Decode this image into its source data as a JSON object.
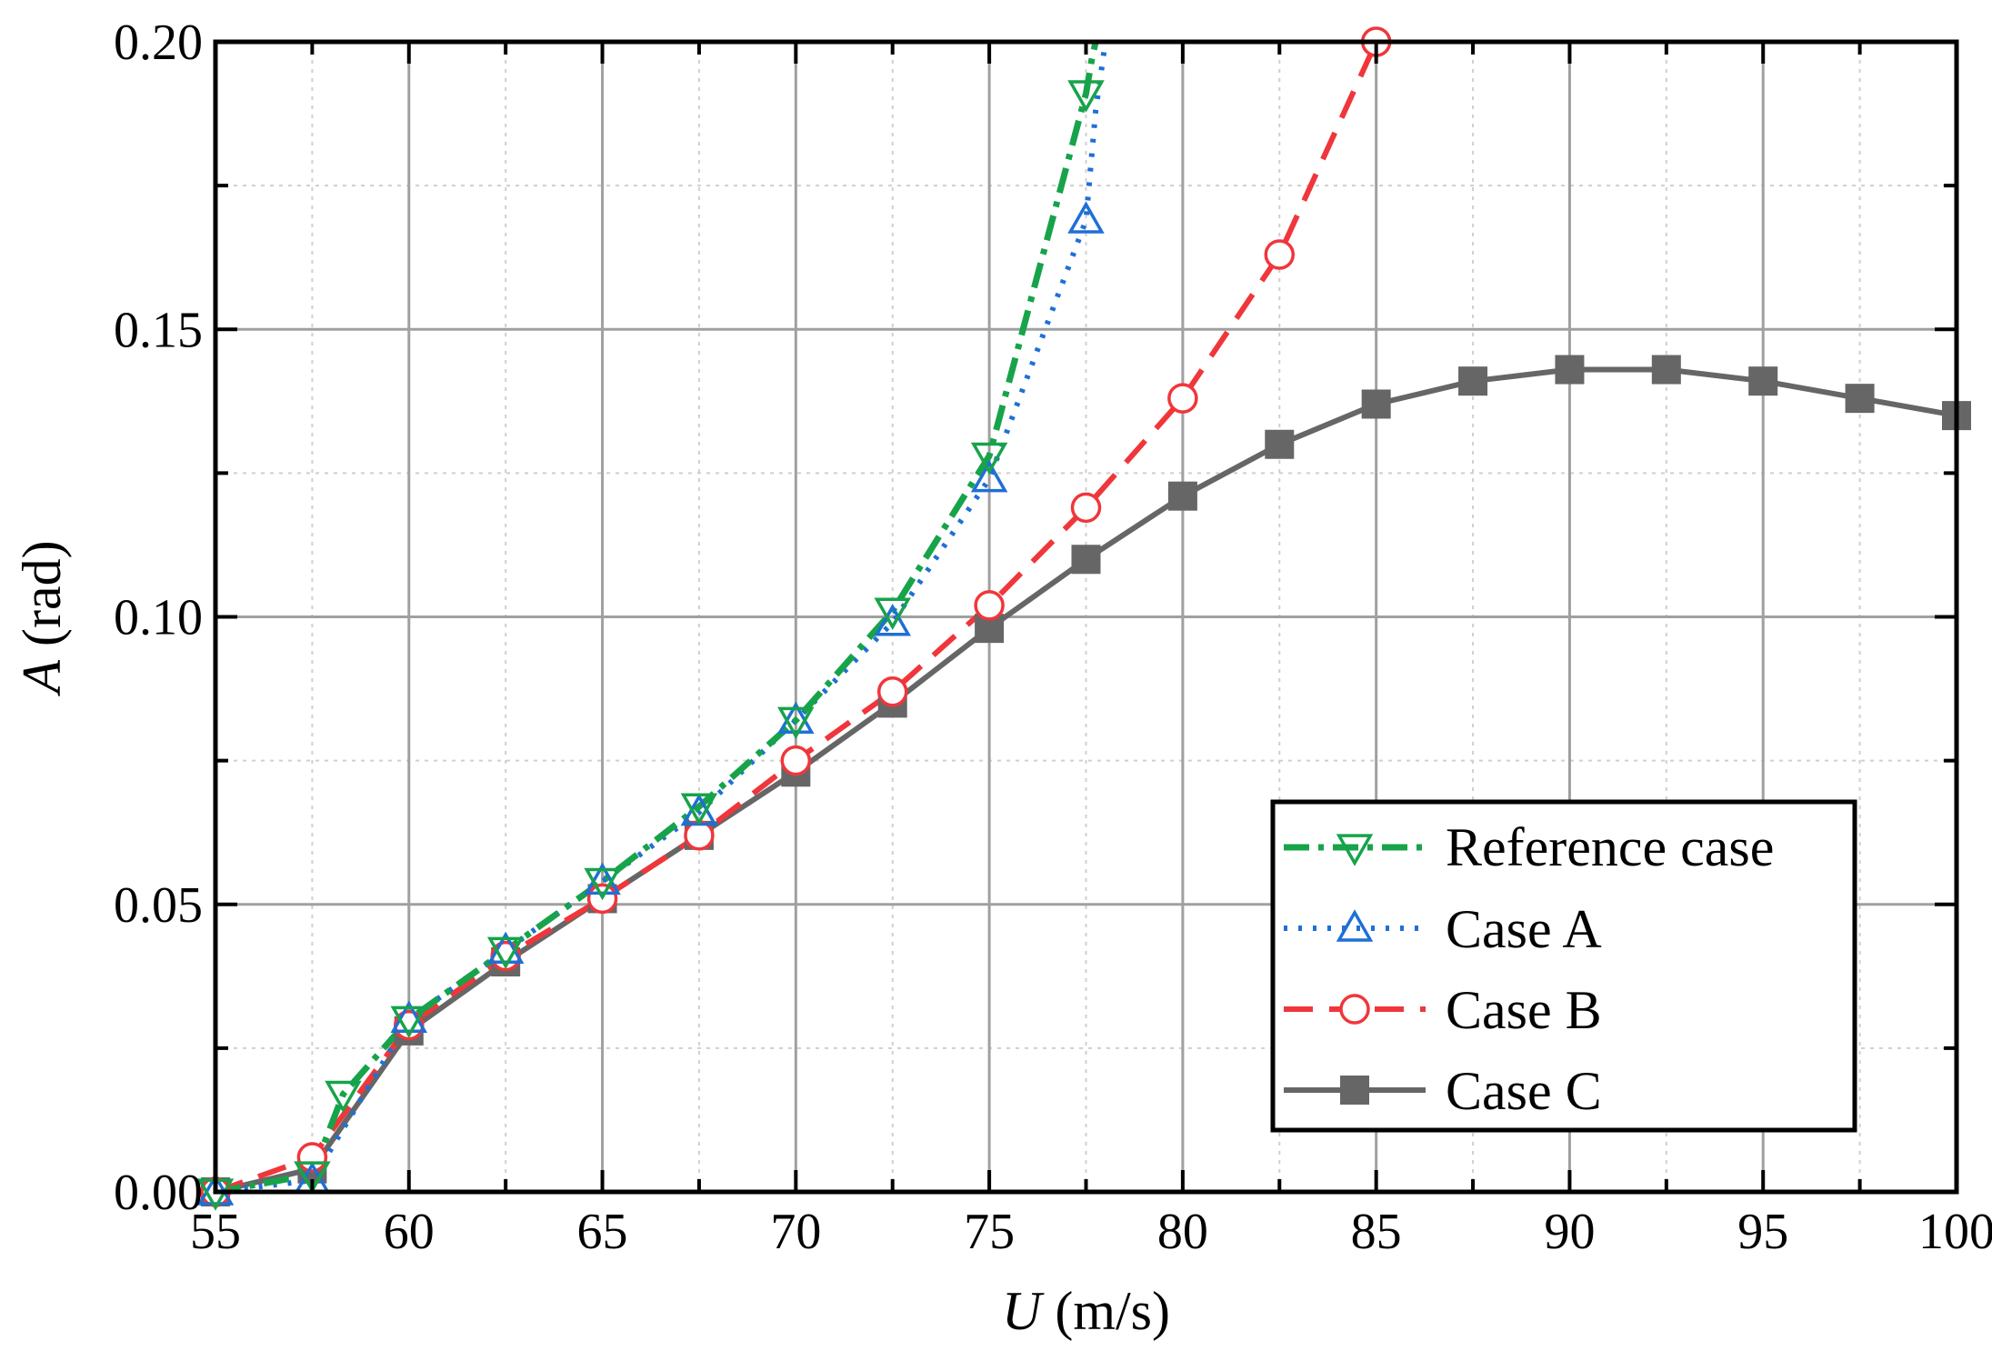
{
  "chart_data": {
    "type": "line",
    "title": "",
    "xlabel": {
      "symbol": "U",
      "unit": " (m/s)"
    },
    "ylabel": {
      "symbol": "A",
      "unit": " (rad)"
    },
    "xlim": [
      55,
      100
    ],
    "ylim": [
      0,
      0.2
    ],
    "xticks": [
      55,
      60,
      65,
      70,
      75,
      80,
      85,
      90,
      95,
      100
    ],
    "xtick_labels": [
      "55",
      "60",
      "65",
      "70",
      "75",
      "80",
      "85",
      "90",
      "95",
      "100"
    ],
    "yticks": [
      0,
      0.05,
      0.1,
      0.15,
      0.2
    ],
    "ytick_labels": [
      "0.00",
      "0.05",
      "0.10",
      "0.15",
      "0.20"
    ],
    "grid": true,
    "legend_position": "bottom-right",
    "series": [
      {
        "name": "Reference case",
        "color": "#17A34A",
        "line_style": "dash-dot",
        "marker": "triangle-down",
        "x": [
          55.0,
          57.5,
          58.3,
          60.0,
          62.5,
          65.0,
          67.5,
          70.0,
          72.5,
          75.0,
          77.5
        ],
        "y": [
          0.0,
          0.003,
          0.017,
          0.03,
          0.042,
          0.054,
          0.067,
          0.082,
          0.101,
          0.128,
          0.191
        ],
        "line_extension": {
          "x": [
            77.5,
            77.65,
            77.75
          ],
          "y": [
            0.191,
            0.197,
            0.2
          ]
        }
      },
      {
        "name": "Case A",
        "color": "#1F6FD6",
        "line_style": "dotted",
        "marker": "triangle-up",
        "x": [
          55.0,
          57.5,
          60.0,
          62.5,
          65.0,
          67.5,
          70.0,
          72.5,
          75.0,
          77.5
        ],
        "y": [
          0.0,
          0.002,
          0.03,
          0.042,
          0.054,
          0.066,
          0.082,
          0.099,
          0.124,
          0.169
        ],
        "line_extension": {
          "x": [
            77.5,
            77.75,
            78.0
          ],
          "y": [
            0.169,
            0.188,
            0.2
          ]
        }
      },
      {
        "name": "Case B",
        "color": "#F0363B",
        "line_style": "dashed",
        "marker": "circle",
        "x": [
          55.0,
          57.5,
          60.0,
          62.5,
          65.0,
          67.5,
          70.0,
          72.5,
          75.0,
          77.5,
          80.0,
          82.5,
          85.0
        ],
        "y": [
          0.0,
          0.006,
          0.029,
          0.041,
          0.051,
          0.062,
          0.075,
          0.087,
          0.102,
          0.119,
          0.138,
          0.163,
          0.2
        ]
      },
      {
        "name": "Case C",
        "color": "#666666",
        "line_style": "solid",
        "marker": "square",
        "x": [
          55.0,
          57.5,
          60.0,
          62.5,
          65.0,
          67.5,
          70.0,
          72.5,
          75.0,
          77.5,
          80.0,
          82.5,
          85.0,
          87.5,
          90.0,
          92.5,
          95.0,
          97.5,
          100.0
        ],
        "y": [
          0.0,
          0.004,
          0.028,
          0.04,
          0.051,
          0.062,
          0.073,
          0.085,
          0.098,
          0.11,
          0.121,
          0.13,
          0.137,
          0.141,
          0.143,
          0.143,
          0.141,
          0.138,
          0.135
        ]
      }
    ]
  }
}
